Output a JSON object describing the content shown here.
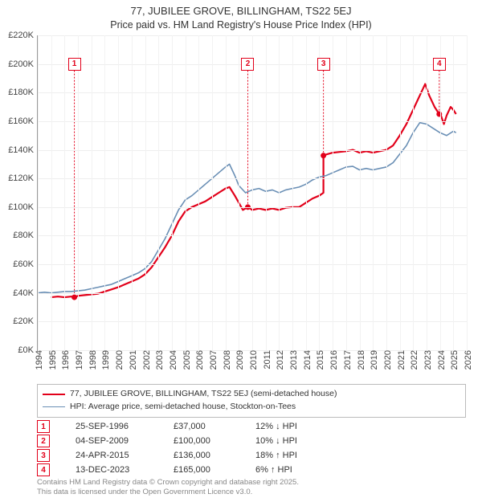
{
  "title_line1": "77, JUBILEE GROVE, BILLINGHAM, TS22 5EJ",
  "title_line2": "Price paid vs. HM Land Registry's House Price Index (HPI)",
  "chart": {
    "type": "line",
    "background_color": "#ffffff",
    "grid_color": "#eeeeee",
    "axis_color": "#999999",
    "x_range": [
      1994,
      2026
    ],
    "y_range": [
      0,
      220000
    ],
    "ytick_step": 20000,
    "ytick_format_prefix": "£",
    "ytick_format_suffix": "K",
    "ytick_divisor": 1000,
    "xtick_step": 1,
    "tick_fontsize": 11,
    "series": [
      {
        "id": "price_paid",
        "label": "77, JUBILEE GROVE, BILLINGHAM, TS22 5EJ (semi-detached house)",
        "color": "#e2001a",
        "width": 2.2,
        "data": [
          [
            1995.0,
            37000
          ],
          [
            1995.5,
            37500
          ],
          [
            1996.0,
            37000
          ],
          [
            1996.5,
            37500
          ],
          [
            1996.73,
            37000
          ],
          [
            1997.0,
            38000
          ],
          [
            1997.5,
            38500
          ],
          [
            1998.0,
            39000
          ],
          [
            1998.5,
            39500
          ],
          [
            1999.0,
            41000
          ],
          [
            1999.5,
            42500
          ],
          [
            2000.0,
            44000
          ],
          [
            2000.5,
            46000
          ],
          [
            2001.0,
            48000
          ],
          [
            2001.5,
            50000
          ],
          [
            2002.0,
            53000
          ],
          [
            2002.5,
            58000
          ],
          [
            2003.0,
            65000
          ],
          [
            2003.5,
            72000
          ],
          [
            2004.0,
            80000
          ],
          [
            2004.5,
            90000
          ],
          [
            2005.0,
            97000
          ],
          [
            2005.5,
            100000
          ],
          [
            2006.0,
            102000
          ],
          [
            2006.5,
            104000
          ],
          [
            2007.0,
            107000
          ],
          [
            2007.5,
            110000
          ],
          [
            2008.0,
            113000
          ],
          [
            2008.3,
            114000
          ],
          [
            2008.7,
            108000
          ],
          [
            2009.0,
            103000
          ],
          [
            2009.3,
            98000
          ],
          [
            2009.67,
            100000
          ],
          [
            2010.0,
            98000
          ],
          [
            2010.5,
            99000
          ],
          [
            2011.0,
            98000
          ],
          [
            2011.5,
            99000
          ],
          [
            2012.0,
            98000
          ],
          [
            2012.5,
            99500
          ],
          [
            2013.0,
            100000
          ],
          [
            2013.5,
            100000
          ],
          [
            2014.0,
            103000
          ],
          [
            2014.5,
            106000
          ],
          [
            2015.0,
            108000
          ],
          [
            2015.31,
            110000
          ],
          [
            2015.31,
            136000
          ],
          [
            2015.6,
            137000
          ],
          [
            2016.0,
            138000
          ],
          [
            2016.5,
            138500
          ],
          [
            2017.0,
            139000
          ],
          [
            2017.5,
            140000
          ],
          [
            2018.0,
            138000
          ],
          [
            2018.5,
            139000
          ],
          [
            2019.0,
            138000
          ],
          [
            2019.5,
            139000
          ],
          [
            2020.0,
            140000
          ],
          [
            2020.5,
            143000
          ],
          [
            2021.0,
            150000
          ],
          [
            2021.5,
            158000
          ],
          [
            2022.0,
            168000
          ],
          [
            2022.5,
            178000
          ],
          [
            2022.9,
            186000
          ],
          [
            2023.2,
            178000
          ],
          [
            2023.6,
            170000
          ],
          [
            2023.95,
            165000
          ],
          [
            2024.0,
            166000
          ],
          [
            2024.3,
            158000
          ],
          [
            2024.5,
            164000
          ],
          [
            2024.8,
            170000
          ],
          [
            2025.0,
            168000
          ],
          [
            2025.2,
            165000
          ]
        ]
      },
      {
        "id": "hpi",
        "label": "HPI: Average price, semi-detached house, Stockton-on-Tees",
        "color": "#6a8fb5",
        "width": 1.6,
        "data": [
          [
            1994.0,
            40000
          ],
          [
            1994.5,
            40500
          ],
          [
            1995.0,
            40000
          ],
          [
            1995.5,
            40500
          ],
          [
            1996.0,
            41000
          ],
          [
            1996.5,
            41000
          ],
          [
            1997.0,
            41500
          ],
          [
            1997.5,
            42000
          ],
          [
            1998.0,
            43000
          ],
          [
            1998.5,
            44000
          ],
          [
            1999.0,
            45000
          ],
          [
            1999.5,
            46000
          ],
          [
            2000.0,
            48000
          ],
          [
            2000.5,
            50000
          ],
          [
            2001.0,
            52000
          ],
          [
            2001.5,
            54000
          ],
          [
            2002.0,
            57000
          ],
          [
            2002.5,
            62000
          ],
          [
            2003.0,
            70000
          ],
          [
            2003.5,
            78000
          ],
          [
            2004.0,
            88000
          ],
          [
            2004.5,
            98000
          ],
          [
            2005.0,
            105000
          ],
          [
            2005.5,
            108000
          ],
          [
            2006.0,
            112000
          ],
          [
            2006.5,
            116000
          ],
          [
            2007.0,
            120000
          ],
          [
            2007.5,
            124000
          ],
          [
            2008.0,
            128000
          ],
          [
            2008.3,
            130000
          ],
          [
            2008.7,
            122000
          ],
          [
            2009.0,
            115000
          ],
          [
            2009.5,
            110000
          ],
          [
            2010.0,
            112000
          ],
          [
            2010.5,
            113000
          ],
          [
            2011.0,
            111000
          ],
          [
            2011.5,
            112000
          ],
          [
            2012.0,
            110000
          ],
          [
            2012.5,
            112000
          ],
          [
            2013.0,
            113000
          ],
          [
            2013.5,
            114000
          ],
          [
            2014.0,
            116000
          ],
          [
            2014.5,
            119000
          ],
          [
            2015.0,
            121000
          ],
          [
            2015.5,
            122000
          ],
          [
            2016.0,
            124000
          ],
          [
            2016.5,
            126000
          ],
          [
            2017.0,
            128000
          ],
          [
            2017.5,
            128500
          ],
          [
            2018.0,
            126000
          ],
          [
            2018.5,
            127000
          ],
          [
            2019.0,
            126000
          ],
          [
            2019.5,
            127000
          ],
          [
            2020.0,
            128000
          ],
          [
            2020.5,
            131000
          ],
          [
            2021.0,
            137000
          ],
          [
            2021.5,
            143000
          ],
          [
            2022.0,
            152000
          ],
          [
            2022.5,
            159000
          ],
          [
            2023.0,
            158000
          ],
          [
            2023.5,
            155000
          ],
          [
            2024.0,
            152000
          ],
          [
            2024.5,
            150000
          ],
          [
            2025.0,
            153000
          ],
          [
            2025.2,
            152000
          ]
        ]
      }
    ],
    "markers": [
      {
        "n": "1",
        "x": 1996.73,
        "y": 37000,
        "y_box": 200000
      },
      {
        "n": "2",
        "x": 2009.67,
        "y": 100000,
        "y_box": 200000
      },
      {
        "n": "3",
        "x": 2015.31,
        "y": 136000,
        "y_box": 200000
      },
      {
        "n": "4",
        "x": 2023.95,
        "y": 165000,
        "y_box": 200000
      }
    ],
    "marker_dot_color": "#e2001a",
    "marker_dot_radius": 3.5
  },
  "legend": {
    "border_color": "#bbbbbb",
    "fontsize": 10.5
  },
  "sales": [
    {
      "n": "1",
      "date": "25-SEP-1996",
      "price": "£37,000",
      "pct": "12% ↓ HPI"
    },
    {
      "n": "2",
      "date": "04-SEP-2009",
      "price": "£100,000",
      "pct": "10% ↓ HPI"
    },
    {
      "n": "3",
      "date": "24-APR-2015",
      "price": "£136,000",
      "pct": "18% ↑ HPI"
    },
    {
      "n": "4",
      "date": "13-DEC-2023",
      "price": "£165,000",
      "pct": "6% ↑ HPI"
    }
  ],
  "attribution_line1": "Contains HM Land Registry data © Crown copyright and database right 2025.",
  "attribution_line2": "This data is licensed under the Open Government Licence v3.0."
}
